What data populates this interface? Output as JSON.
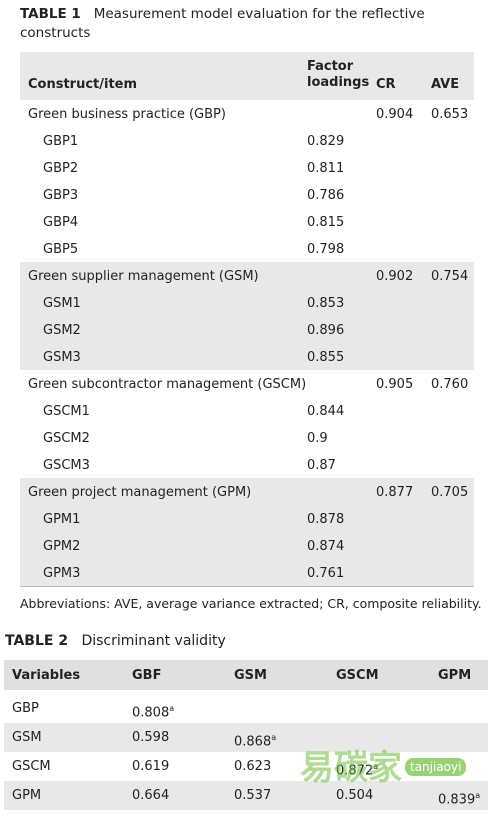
{
  "table1": {
    "label": "TABLE 1",
    "caption": "Measurement model evaluation for the reflective constructs",
    "headers": [
      "Construct/item",
      "Factor loadings",
      "CR",
      "AVE"
    ],
    "groups": [
      {
        "construct": "Green business practice (GBP)",
        "cr": "0.904",
        "ave": "0.653",
        "items": [
          {
            "item": "GBP1",
            "loading": "0.829"
          },
          {
            "item": "GBP2",
            "loading": "0.811"
          },
          {
            "item": "GBP3",
            "loading": "0.786"
          },
          {
            "item": "GBP4",
            "loading": "0.815"
          },
          {
            "item": "GBP5",
            "loading": "0.798"
          }
        ]
      },
      {
        "construct": "Green supplier management (GSM)",
        "cr": "0.902",
        "ave": "0.754",
        "items": [
          {
            "item": "GSM1",
            "loading": "0.853"
          },
          {
            "item": "GSM2",
            "loading": "0.896"
          },
          {
            "item": "GSM3",
            "loading": "0.855"
          }
        ]
      },
      {
        "construct": "Green subcontractor management (GSCM)",
        "cr": "0.905",
        "ave": "0.760",
        "items": [
          {
            "item": "GSCM1",
            "loading": "0.844"
          },
          {
            "item": "GSCM2",
            "loading": "0.9"
          },
          {
            "item": "GSCM3",
            "loading": "0.87"
          }
        ]
      },
      {
        "construct": "Green project management (GPM)",
        "cr": "0.877",
        "ave": "0.705",
        "items": [
          {
            "item": "GPM1",
            "loading": "0.878"
          },
          {
            "item": "GPM2",
            "loading": "0.874"
          },
          {
            "item": "GPM3",
            "loading": "0.761"
          }
        ]
      }
    ],
    "footnote": "Abbreviations: AVE, average variance extracted; CR, composite reliability."
  },
  "table2": {
    "label": "TABLE 2",
    "caption": "Discriminant validity",
    "headers": [
      "Variables",
      "GBF",
      "GSM",
      "GSCM",
      "GPM"
    ],
    "rows": [
      {
        "variable": "GBP",
        "cells": [
          {
            "value": "0.808",
            "sup": "a"
          }
        ]
      },
      {
        "variable": "GSM",
        "cells": [
          {
            "value": "0.598"
          },
          {
            "value": "0.868",
            "sup": "a"
          }
        ]
      },
      {
        "variable": "GSCM",
        "cells": [
          {
            "value": "0.619"
          },
          {
            "value": "0.623"
          },
          {
            "value": "0.872",
            "sup": "a"
          }
        ]
      },
      {
        "variable": "GPM",
        "cells": [
          {
            "value": "0.664"
          },
          {
            "value": "0.537"
          },
          {
            "value": "0.504"
          },
          {
            "value": "0.839",
            "sup": "a"
          }
        ]
      }
    ]
  },
  "watermark": {
    "brand": "易碳家",
    "site": "tanjiaoyi"
  }
}
